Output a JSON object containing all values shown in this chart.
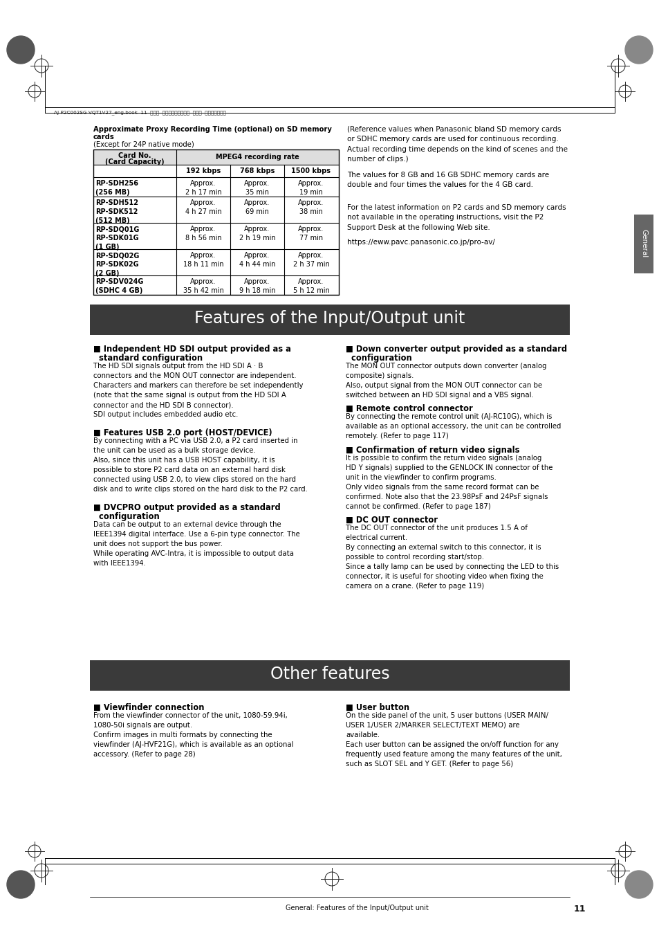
{
  "page_bg": "#ffffff",
  "header_text": "AJ-P2C002SG-VQT1V27_eng.book  11  ページ  ２００８年９月２日  火曜日  午後５時４３分",
  "table_title_line1": "Approximate Proxy Recording Time (optional) on SD memory",
  "table_title_line2": "cards",
  "table_title_line3": "(Except for 24P native mode)",
  "table_header1": "Card No.",
  "table_header1b": "(Card Capacity)",
  "table_header2": "MPEG4 recording rate",
  "table_col1": "192 kbps",
  "table_col2": "768 kbps",
  "table_col3": "1500 kbps",
  "table_rows": [
    {
      "card": "RP-SDH256\n(256 MB)",
      "v1": "Approx.\n2 h 17 min",
      "v2": "Approx.\n35 min",
      "v3": "Approx.\n19 min",
      "nlines": 2
    },
    {
      "card": "RP-SDH512\nRP-SDK512\n(512 MB)",
      "v1": "Approx.\n4 h 27 min",
      "v2": "Approx.\n69 min",
      "v3": "Approx.\n38 min",
      "nlines": 3
    },
    {
      "card": "RP-SDQ01G\nRP-SDK01G\n(1 GB)",
      "v1": "Approx.\n8 h 56 min",
      "v2": "Approx.\n2 h 19 min",
      "v3": "Approx.\n77 min",
      "nlines": 3
    },
    {
      "card": "RP-SDQ02G\nRP-SDK02G\n(2 GB)",
      "v1": "Approx.\n18 h 11 min",
      "v2": "Approx.\n4 h 44 min",
      "v3": "Approx.\n2 h 37 min",
      "nlines": 3
    },
    {
      "card": "RP-SDV024G\n(SDHC 4 GB)",
      "v1": "Approx.\n35 h 42 min",
      "v2": "Approx.\n9 h 18 min",
      "v3": "Approx.\n5 h 12 min",
      "nlines": 2
    }
  ],
  "right_text1": "(Reference values when Panasonic bland SD memory cards\nor SDHC memory cards are used for continuous recording.\nActual recording time depends on the kind of scenes and the\nnumber of clips.)",
  "right_text2": "The values for 8 GB and 16 GB SDHC memory cards are\ndouble and four times the values for the 4 GB card.",
  "right_text3": "For the latest information on P2 cards and SD memory cards\nnot available in the operating instructions, visit the P2\nSupport Desk at the following Web site.",
  "right_text4": "https://eww.pavc.panasonic.co.jp/pro-av/",
  "banner1_text": "Features of the Input/Output unit",
  "banner1_bg": "#3a3a3a",
  "banner1_fg": "#ffffff",
  "banner2_text": "Other features",
  "banner2_bg": "#3a3a3a",
  "banner2_fg": "#ffffff",
  "section1_title_l1": "■ Independent HD SDI output provided as a",
  "section1_title_l2": "  standard configuration",
  "section1_body": "The HD SDI signals output from the HD SDI A · B\nconnectors and the MON OUT connector are independent.\nCharacters and markers can therefore be set independently\n(note that the same signal is output from the HD SDI A\nconnector and the HD SDI B connector).\nSDI output includes embedded audio etc.",
  "section2_title": "■ Features USB 2.0 port (HOST/DEVICE)",
  "section2_body": "By connecting with a PC via USB 2.0, a P2 card inserted in\nthe unit can be used as a bulk storage device.\nAlso, since this unit has a USB HOST capability, it is\npossible to store P2 card data on an external hard disk\nconnected using USB 2.0, to view clips stored on the hard\ndisk and to write clips stored on the hard disk to the P2 card.",
  "section3_title_l1": "■ DVCPRO output provided as a standard",
  "section3_title_l2": "  configuration",
  "section3_body": "Data can be output to an external device through the\nIEEE1394 digital interface. Use a 6-pin type connector. The\nunit does not support the bus power.\nWhile operating AVC-Intra, it is impossible to output data\nwith IEEE1394.",
  "section4_title_l1": "■ Down converter output provided as a standard",
  "section4_title_l2": "  configuration",
  "section4_body": "The MON OUT connector outputs down converter (analog\ncomposite) signals.\nAlso, output signal from the MON OUT connector can be\nswitched between an HD SDI signal and a VBS signal.",
  "section5_title": "■ Remote control connector",
  "section5_body": "By connecting the remote control unit (AJ-RC10G), which is\navailable as an optional accessory, the unit can be controlled\nremotely. (Refer to page 117)",
  "section6_title": "■ Confirmation of return video signals",
  "section6_body": "It is possible to confirm the return video signals (analog\nHD Y signals) supplied to the GENLOCK IN connector of the\nunit in the viewfinder to confirm programs.\nOnly video signals from the same record format can be\nconfirmed. Note also that the 23.98PsF and 24PsF signals\ncannot be confirmed. (Refer to page 187)",
  "section7_title": "■ DC OUT connector",
  "section7_body": "The DC OUT connector of the unit produces 1.5 A of\nelectrical current.\nBy connecting an external switch to this connector, it is\npossible to control recording start/stop.\nSince a tally lamp can be used by connecting the LED to this\nconnector, it is useful for shooting video when fixing the\ncamera on a crane. (Refer to page 119)",
  "section8_title": "■ Viewfinder connection",
  "section8_body": "From the viewfinder connector of the unit, 1080-59.94i,\n1080-50i signals are output.\nConfirm images in multi formats by connecting the\nviewfinder (AJ-HVF21G), which is available as an optional\naccessory. (Refer to page 28)",
  "section9_title": "■ User button",
  "section9_body": "On the side panel of the unit, 5 user buttons (USER MAIN/\nUSER 1/USER 2/MARKER SELECT/TEXT MEMO) are\navailable.\nEach user button can be assigned the on/off function for any\nfrequently used feature among the many features of the unit,\nsuch as SLOT SEL and Y GET. (Refer to page 56)",
  "footer_text": "General: Features of the Input/Output unit",
  "footer_page": "11",
  "sidebar_text": "General",
  "sidebar_bg": "#666666"
}
